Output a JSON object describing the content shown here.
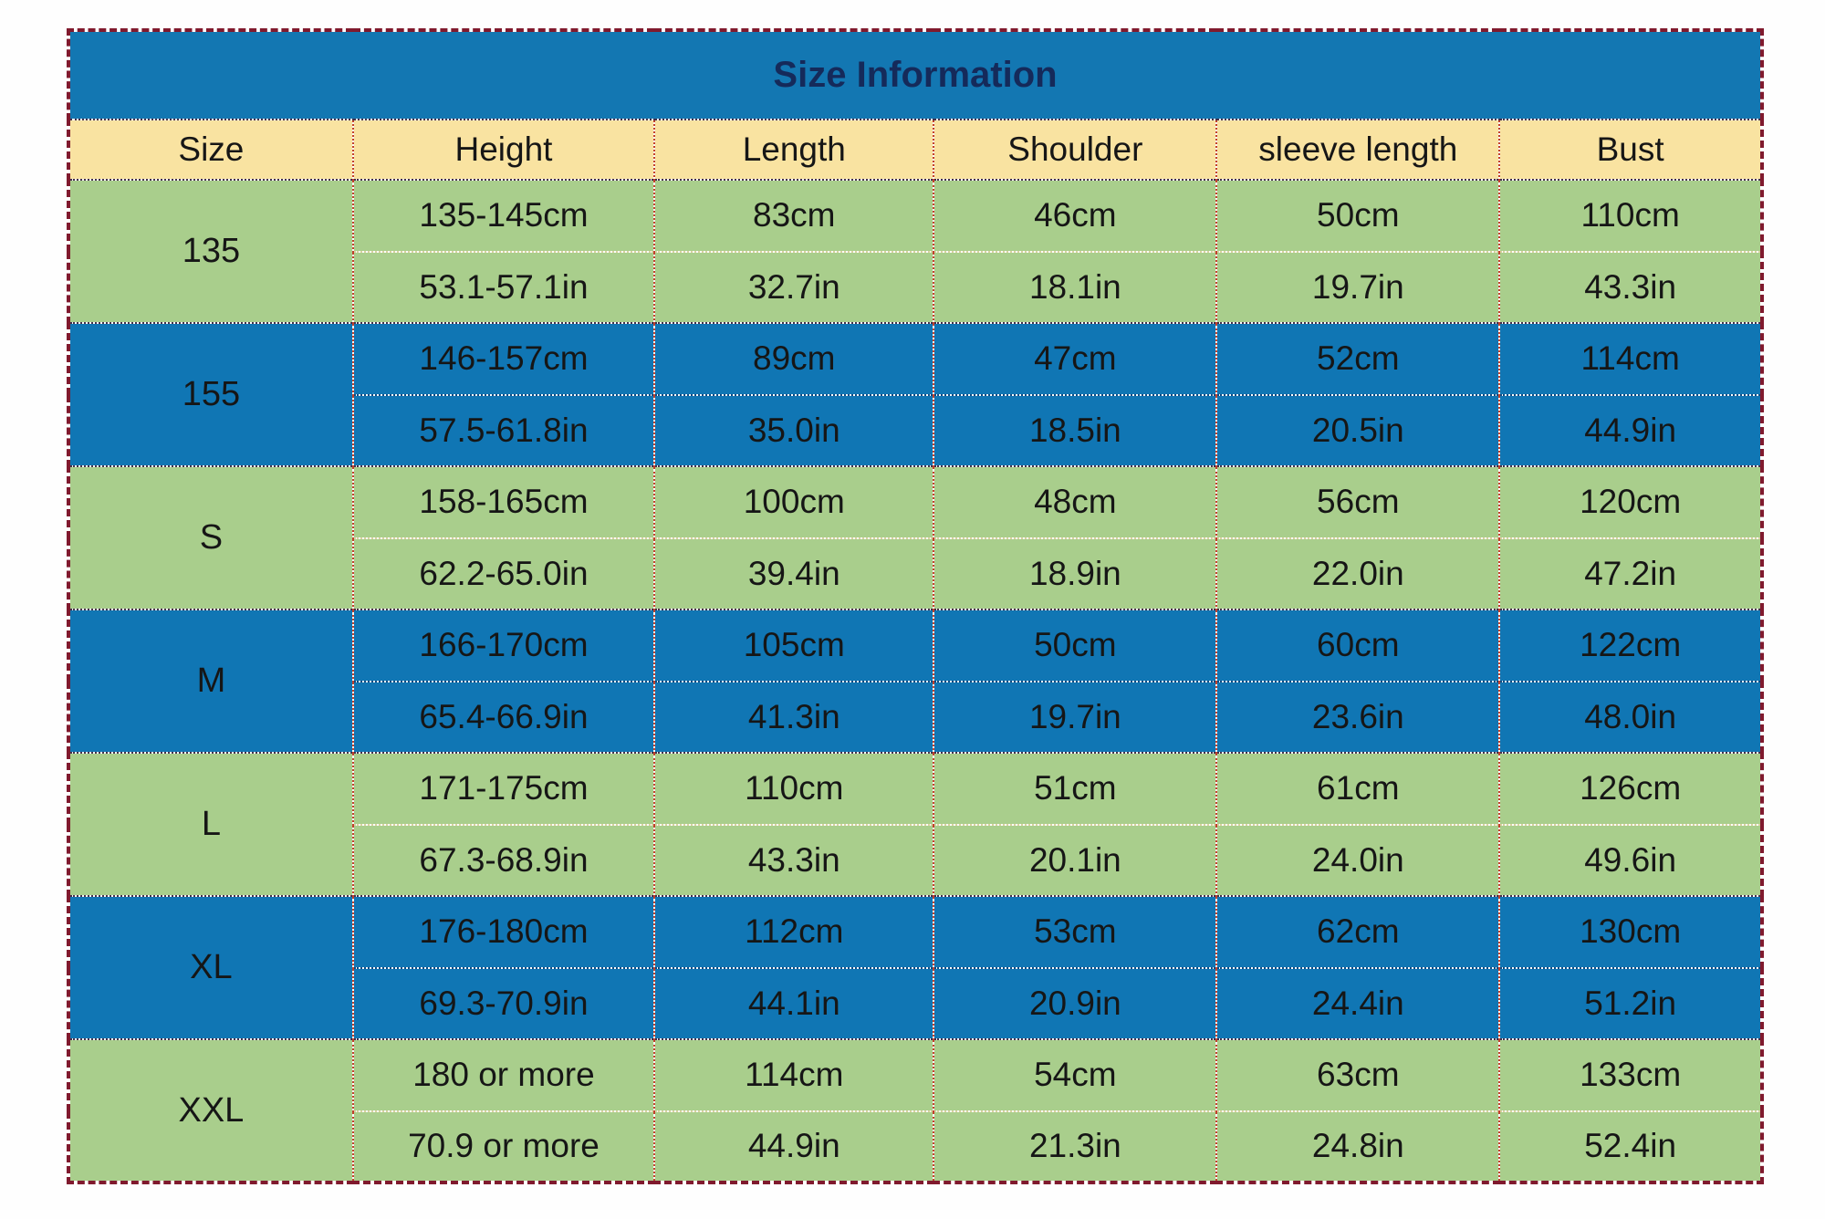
{
  "chart_data": {
    "type": "table",
    "title": "Size Information",
    "columns": [
      "Size",
      "Height",
      "Length",
      "Shoulder",
      "sleeve length",
      "Bust"
    ],
    "rows": [
      {
        "size": "135",
        "variant": "green",
        "cm": [
          "135-145cm",
          "83cm",
          "46cm",
          "50cm",
          "110cm"
        ],
        "inch": [
          "53.1-57.1in",
          "32.7in",
          "18.1in",
          "19.7in",
          "43.3in"
        ]
      },
      {
        "size": "155",
        "variant": "blue",
        "cm": [
          "146-157cm",
          "89cm",
          "47cm",
          "52cm",
          "114cm"
        ],
        "inch": [
          "57.5-61.8in",
          "35.0in",
          "18.5in",
          "20.5in",
          "44.9in"
        ]
      },
      {
        "size": "S",
        "variant": "green",
        "cm": [
          "158-165cm",
          "100cm",
          "48cm",
          "56cm",
          "120cm"
        ],
        "inch": [
          "62.2-65.0in",
          "39.4in",
          "18.9in",
          "22.0in",
          "47.2in"
        ]
      },
      {
        "size": "M",
        "variant": "blue",
        "cm": [
          "166-170cm",
          "105cm",
          "50cm",
          "60cm",
          "122cm"
        ],
        "inch": [
          "65.4-66.9in",
          "41.3in",
          "19.7in",
          "23.6in",
          "48.0in"
        ]
      },
      {
        "size": "L",
        "variant": "green",
        "cm": [
          "171-175cm",
          "110cm",
          "51cm",
          "61cm",
          "126cm"
        ],
        "inch": [
          "67.3-68.9in",
          "43.3in",
          "20.1in",
          "24.0in",
          "49.6in"
        ]
      },
      {
        "size": "XL",
        "variant": "blue",
        "cm": [
          "176-180cm",
          "112cm",
          "53cm",
          "62cm",
          "130cm"
        ],
        "inch": [
          "69.3-70.9in",
          "44.1in",
          "20.9in",
          "24.4in",
          "51.2in"
        ]
      },
      {
        "size": "XXL",
        "variant": "green",
        "cm": [
          "180 or more",
          "114cm",
          "54cm",
          "63cm",
          "133cm"
        ],
        "inch": [
          "70.9 or more",
          "44.9in",
          "21.3in",
          "24.8in",
          "52.4in"
        ]
      }
    ]
  },
  "colors": {
    "title-bg": "#1377b2",
    "title-text": "#152a5a",
    "header-bg": "#f9e3a1",
    "green-row-bg": "#a9ce8c",
    "blue-row-bg": "#1076b4",
    "cell-text": "#161616",
    "outer-border": "#801a2e",
    "grid-red": "#c2402c",
    "group-line": "#44304a",
    "green-sep": "#d9d09e",
    "blue-sep": "#104a80"
  }
}
